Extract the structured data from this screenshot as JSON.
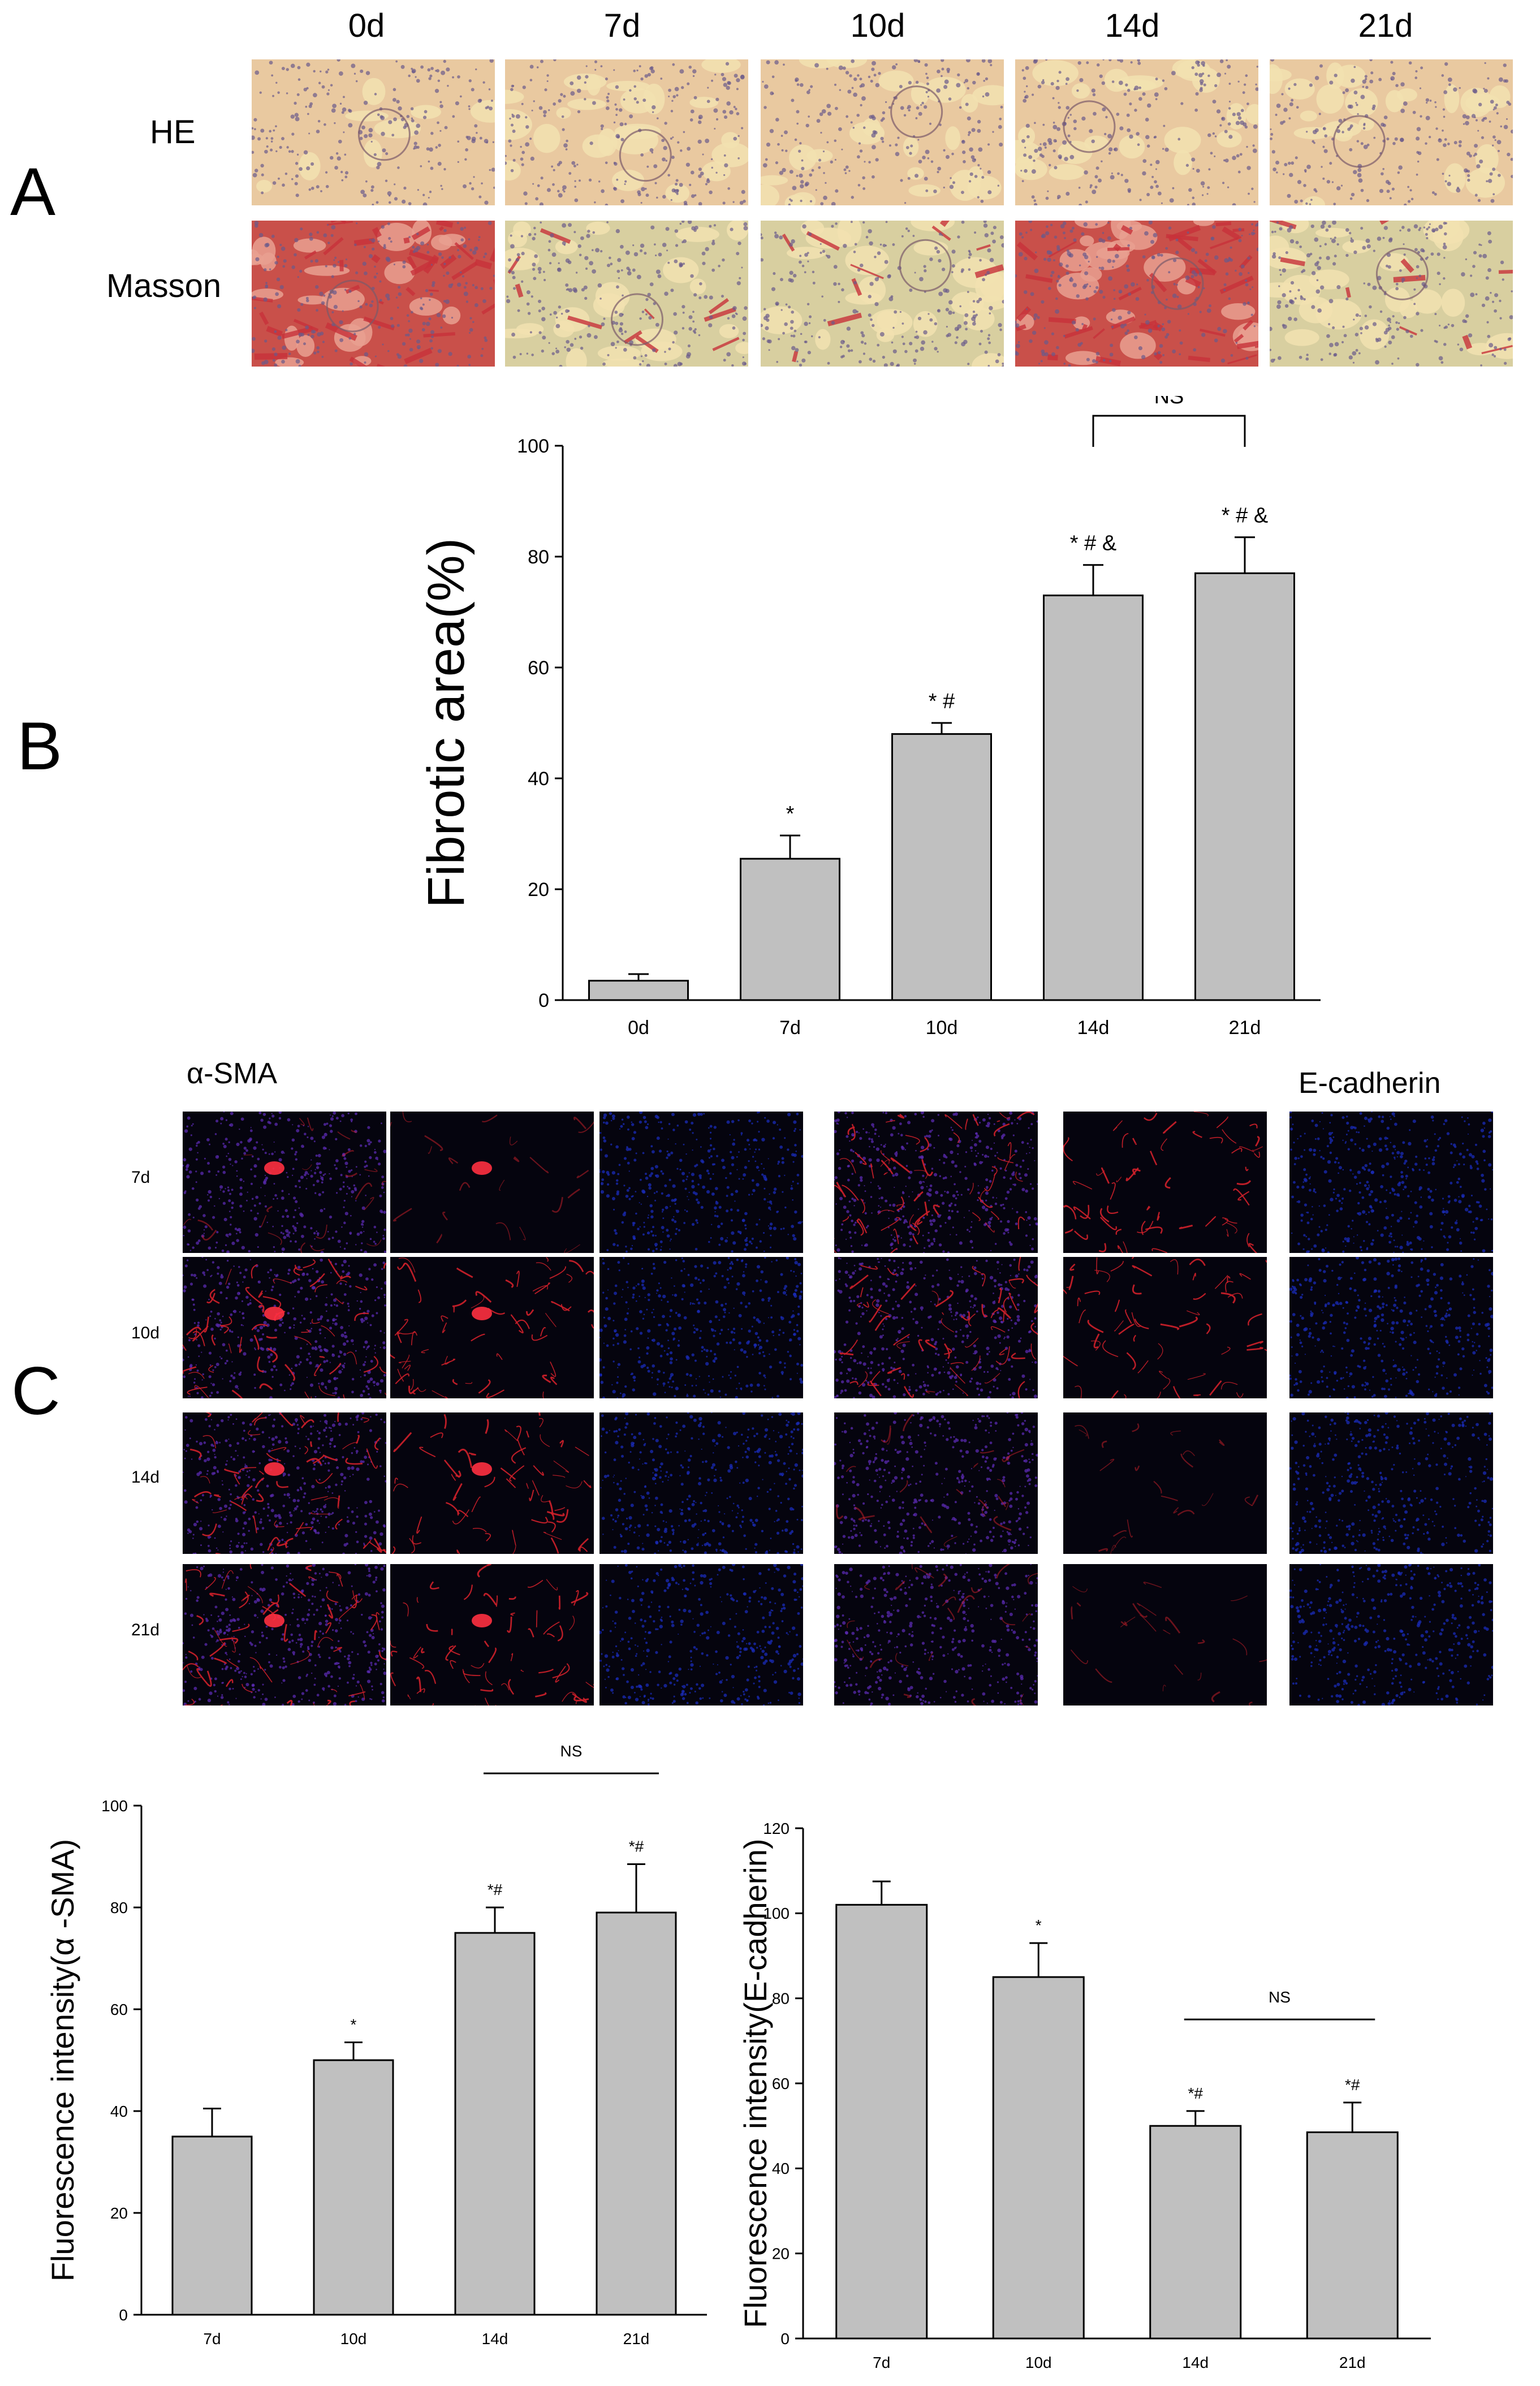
{
  "panels": {
    "A": "A",
    "B": "B",
    "C": "C"
  },
  "panel_a": {
    "columns": [
      "0d",
      "7d",
      "10d",
      "14d",
      "21d"
    ],
    "rows": [
      "HE",
      "Masson"
    ],
    "colors": {
      "he_bg": "#e9c9a0",
      "he_nuclei": "#6a5a8a",
      "masson_red": "#c8323a",
      "masson_pale": "#d8cfa0"
    }
  },
  "panel_c": {
    "left_stain": "α-SMA",
    "right_stain": "E-cadherin",
    "rows": [
      "7d",
      "10d",
      "14d",
      "21d"
    ],
    "colors": {
      "dapi_blue": "#1a2bb8",
      "signal_red": "#d0202a",
      "merge_purple": "#5a2ab0"
    }
  },
  "chart_data": [
    {
      "type": "bar",
      "ylabel": "Fibrotic area(%)",
      "categories": [
        "0d",
        "7d",
        "10d",
        "14d",
        "21d"
      ],
      "values": [
        3.5,
        25.5,
        48,
        73,
        77
      ],
      "errors": [
        1.2,
        4.2,
        2,
        5.5,
        6.5
      ],
      "annotations": [
        "",
        "*",
        "* #",
        "* # &",
        "* # &"
      ],
      "significance": {
        "label": "NS",
        "between": [
          "14d",
          "21d"
        ]
      },
      "ylim": [
        0,
        100
      ],
      "yticks": [
        0,
        20,
        40,
        60,
        80,
        100
      ],
      "bar_color": "#c0c0c0"
    },
    {
      "type": "bar",
      "ylabel": "Fluorescence intensity(α -SMA)",
      "categories": [
        "7d",
        "10d",
        "14d",
        "21d"
      ],
      "values": [
        35,
        50,
        75,
        79
      ],
      "errors": [
        5.5,
        3.5,
        5,
        9.5
      ],
      "annotations": [
        "",
        "*",
        "*#",
        "*#"
      ],
      "significance": {
        "label": "NS",
        "between": [
          "14d",
          "21d"
        ]
      },
      "ylim": [
        0,
        100
      ],
      "yticks": [
        0,
        20,
        40,
        60,
        80,
        100
      ],
      "bar_color": "#c0c0c0"
    },
    {
      "type": "bar",
      "ylabel": "Fluorescence intensity(E-cadherin)",
      "categories": [
        "7d",
        "10d",
        "14d",
        "21d"
      ],
      "values": [
        102,
        85,
        50,
        48.5
      ],
      "errors": [
        5.5,
        8,
        3.5,
        7
      ],
      "annotations": [
        "",
        "*",
        "*#",
        "*#"
      ],
      "significance": {
        "label": "NS",
        "between": [
          "14d",
          "21d"
        ]
      },
      "ylim": [
        0,
        120
      ],
      "yticks": [
        0,
        20,
        40,
        60,
        80,
        100,
        120
      ],
      "bar_color": "#c0c0c0"
    }
  ]
}
